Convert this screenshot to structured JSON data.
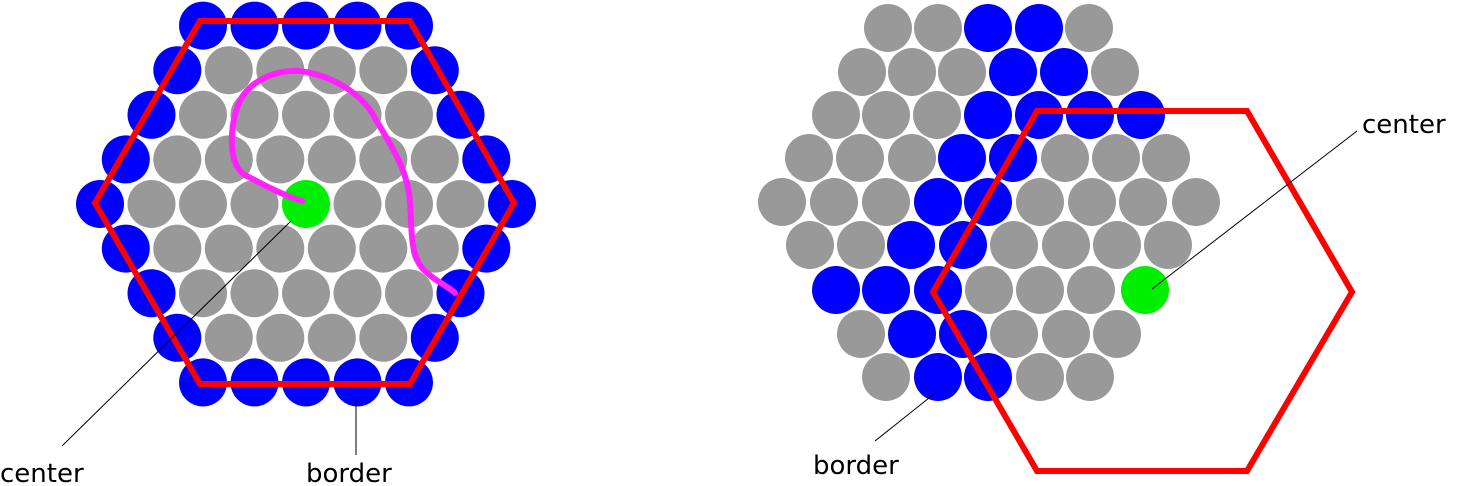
{
  "colors": {
    "interior": "#999999",
    "border": "#0000ff",
    "center": "#00ee00",
    "hexagon": "#ff0000",
    "path": "#ff22ff",
    "leader": "#000000"
  },
  "left_panel": {
    "center_label": "center",
    "border_label": "border"
  },
  "right_panel": {
    "center_label": "center",
    "border_label": "border"
  }
}
